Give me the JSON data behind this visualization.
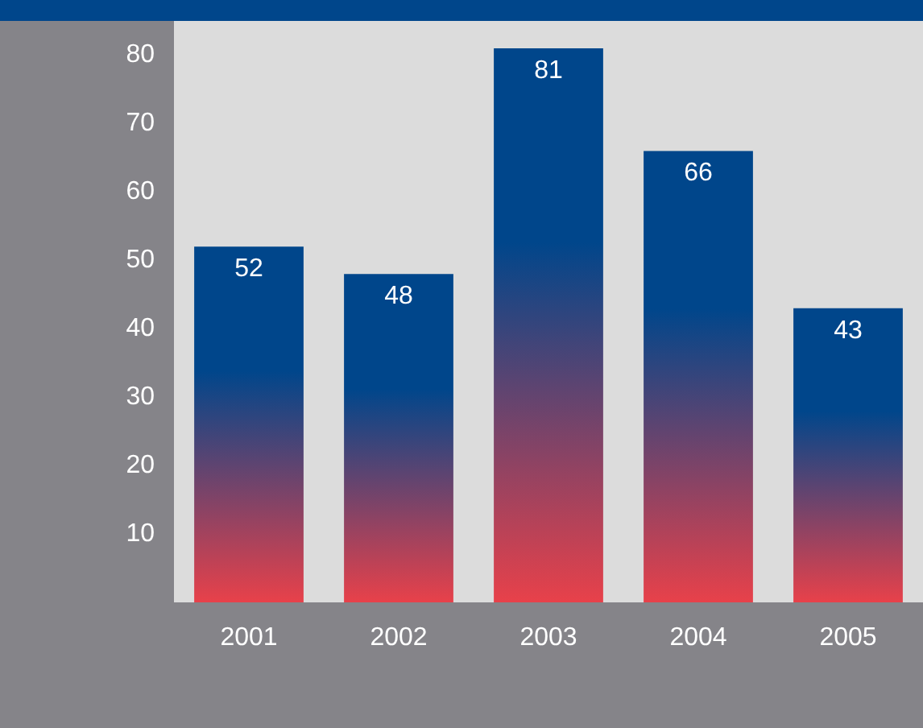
{
  "chart_data": {
    "type": "bar",
    "categories": [
      "2001",
      "2002",
      "2003",
      "2004",
      "2005"
    ],
    "series": [
      {
        "color": "#00468b",
        "values": [
          52,
          48,
          81,
          66,
          43
        ]
      }
    ],
    "ylim": [
      0,
      85
    ],
    "yticks": [
      10,
      20,
      30,
      40,
      50,
      60,
      70,
      80
    ],
    "data_labels": true,
    "grid": false
  }
}
